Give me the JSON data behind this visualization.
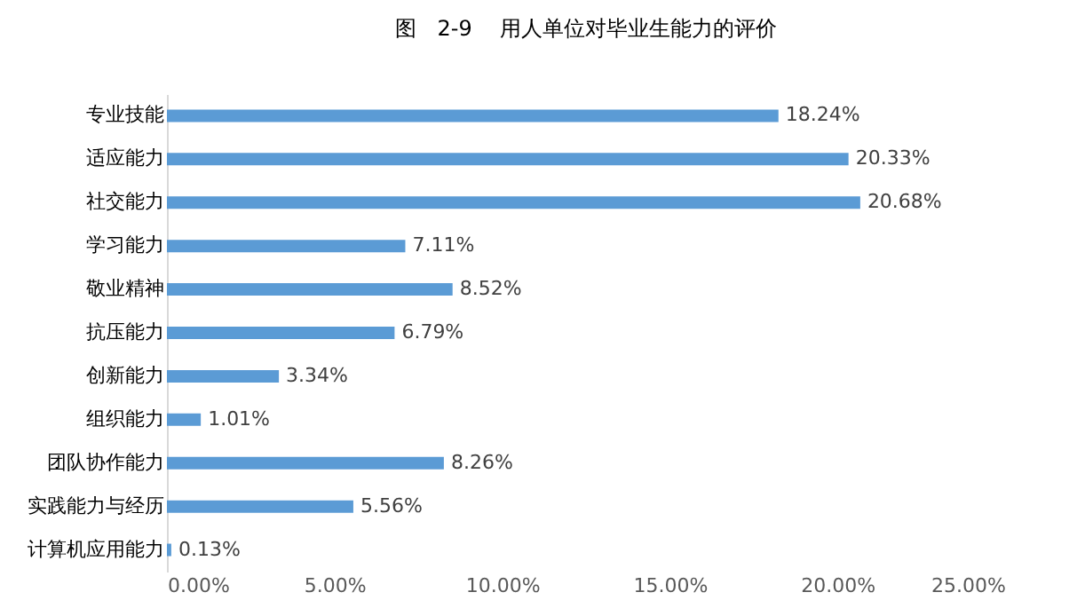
{
  "chart_data": {
    "type": "bar",
    "orientation": "horizontal",
    "title": "图　2-9　 用人单位对毕业生能力的评价",
    "categories": [
      "专业技能",
      "适应能力",
      "社交能力",
      "学习能力",
      "敬业精神",
      "抗压能力",
      "创新能力",
      "组织能力",
      "团队协作能力",
      "实践能力与经历",
      "计算机应用能力"
    ],
    "values": [
      18.24,
      20.33,
      20.68,
      7.11,
      8.52,
      6.79,
      3.34,
      1.01,
      8.26,
      5.56,
      0.13
    ],
    "value_labels": [
      "18.24%",
      "20.33%",
      "20.68%",
      "7.11%",
      "8.52%",
      "6.79%",
      "3.34%",
      "1.01%",
      "8.26%",
      "5.56%",
      "0.13%"
    ],
    "color": "#5b9bd5",
    "xlim": [
      0,
      25
    ],
    "xticks": [
      {
        "value": 0,
        "label": "0.00%"
      },
      {
        "value": 5,
        "label": "5.00%"
      },
      {
        "value": 10,
        "label": "10.00%"
      },
      {
        "value": 15,
        "label": "15.00%"
      },
      {
        "value": 20,
        "label": "20.00%"
      },
      {
        "value": 25,
        "label": "25.00%"
      }
    ],
    "grid": false
  }
}
